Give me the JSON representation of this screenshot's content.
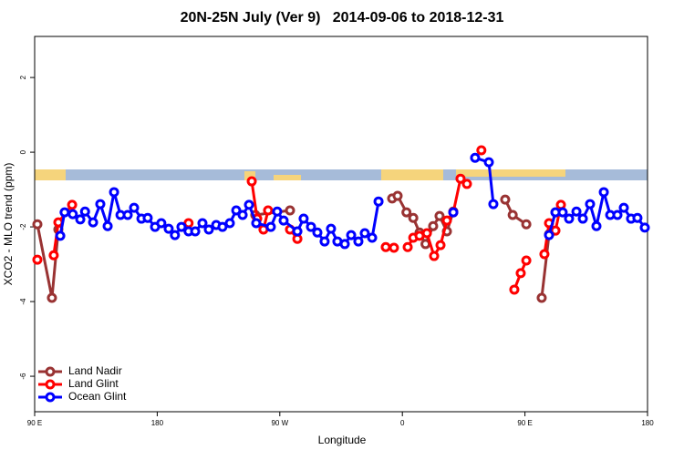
{
  "chart_data": {
    "type": "line",
    "title": "20N-25N July (Ver 9)   2014-09-06 to 2018-12-31",
    "xlabel": "Longitude",
    "ylabel": "XCO2 - MLO trend (ppm)",
    "xlim": [
      90,
      540
    ],
    "xticks": [
      {
        "value": 90,
        "label": "90 E"
      },
      180,
      {
        "value": 270,
        "label": "90 W"
      },
      {
        "value": 360,
        "label": "0"
      },
      {
        "value": 450,
        "label": "90 E"
      },
      {
        "value": 540,
        "label": "180"
      }
    ],
    "ylim": [
      -6.95,
      3.1
    ],
    "yticks": [
      -6,
      -4,
      -2,
      0,
      2
    ],
    "legend": "lower left",
    "series": [
      {
        "name": "Land Nadir",
        "color": "#993333",
        "x": [
          92,
          102.7,
          107.4,
          null,
          252,
          277.5,
          null,
          352.5,
          356.5,
          363,
          368,
          372.6,
          377,
          382.6,
          387.3,
          392.7,
          397.4,
          null,
          435.5,
          441,
          451,
          null,
          462.3,
          467.7,
          472.4
        ],
        "values": [
          -1.93,
          -3.9,
          -2.07,
          null,
          -1.68,
          -1.56,
          null,
          -1.24,
          -1.17,
          -1.61,
          -1.76,
          -2.15,
          -2.46,
          -1.98,
          -1.71,
          -2.12,
          -1.59,
          null,
          -1.27,
          -1.68,
          -1.93,
          null,
          -3.9,
          -2.2,
          -1.61
        ]
      },
      {
        "name": "Land Glint",
        "color": "#ff0000",
        "x": [
          92,
          null,
          104,
          107.4,
          117.5,
          null,
          203,
          null,
          249.4,
          253.4,
          258,
          261.4,
          null,
          277.5,
          282.9,
          null,
          347.8,
          353.8,
          null,
          363.9,
          368,
          372.6,
          378,
          383.3,
          388,
          392.7,
          397.4,
          402.7,
          407.4,
          null,
          418,
          null,
          442.2,
          446.9,
          451,
          null,
          464.3,
          467.7,
          472.4,
          476.4
        ],
        "values": [
          -2.88,
          null,
          -2.76,
          -1.88,
          -1.41,
          null,
          -1.9,
          null,
          -0.78,
          -1.78,
          -2.07,
          -1.56,
          null,
          -2.07,
          -2.32,
          null,
          -2.54,
          -2.56,
          null,
          -2.54,
          -2.29,
          -2.24,
          -2.17,
          -2.78,
          -2.49,
          -1.83,
          -1.61,
          -0.71,
          -0.85,
          null,
          0.05,
          null,
          -3.68,
          -3.24,
          -2.9,
          null,
          -2.73,
          -1.9,
          -2.1,
          -1.41
        ]
      },
      {
        "name": "Ocean Glint",
        "color": "#0000ff",
        "x": [
          108.8,
          112,
          118,
          123.5,
          127,
          132.9,
          138.2,
          143.6,
          148.3,
          153,
          158.3,
          163,
          168.4,
          173,
          178.4,
          183,
          188.4,
          193,
          197.8,
          203,
          207.9,
          213.2,
          217.9,
          223.3,
          227.9,
          233.3,
          238,
          242.7,
          247.4,
          252.7,
          263.4,
          268.1,
          272.8,
          282.9,
          287.5,
          292.9,
          297.6,
          302.9,
          307.6,
          312.3,
          317.7,
          322.4,
          327.7,
          332.4,
          337.8,
          342.5,
          null,
          397.4,
          null,
          413.4,
          423.5,
          426.8,
          null,
          467.7,
          472.4,
          477.7,
          482.4,
          487.8,
          492.5,
          497.8,
          502.5,
          507.9,
          512.6,
          517.9,
          522.6,
          527.9,
          532.6,
          538
        ],
        "values": [
          -2.24,
          -1.61,
          -1.66,
          -1.8,
          -1.59,
          -1.88,
          -1.39,
          -1.98,
          -1.07,
          -1.68,
          -1.68,
          -1.49,
          -1.78,
          -1.76,
          -2.0,
          -1.9,
          -2.05,
          -2.22,
          -2.0,
          -2.12,
          -2.12,
          -1.9,
          -2.07,
          -1.95,
          -2.0,
          -1.9,
          -1.56,
          -1.68,
          -1.41,
          -1.9,
          -2.0,
          -1.59,
          -1.83,
          -2.12,
          -1.78,
          -2.0,
          -2.15,
          -2.39,
          -2.05,
          -2.39,
          -2.46,
          -2.22,
          -2.39,
          -2.17,
          -2.29,
          -1.32,
          null,
          -1.61,
          null,
          -0.15,
          -0.27,
          -1.39,
          null,
          -2.22,
          -1.61,
          -1.61,
          -1.78,
          -1.59,
          -1.78,
          -1.39,
          -1.98,
          -1.07,
          -1.68,
          -1.68,
          -1.49,
          -1.78,
          -1.76,
          -2.02
        ]
      }
    ]
  }
}
